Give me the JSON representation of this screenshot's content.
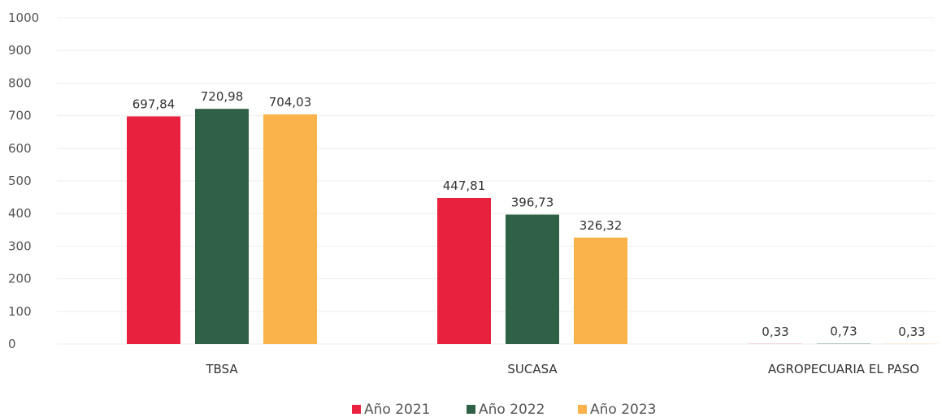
{
  "chart_data": {
    "type": "bar",
    "categories": [
      "TBSA",
      "SUCASA",
      "AGROPECUARIA EL PASO"
    ],
    "series": [
      {
        "name": "Año 2021",
        "color": "#e8213f",
        "values": [
          697.84,
          447.81,
          0.33
        ],
        "labels": [
          "697,84",
          "447,81",
          "0,33"
        ]
      },
      {
        "name": "Año 2022",
        "color": "#2f6146",
        "values": [
          720.98,
          396.73,
          0.73
        ],
        "labels": [
          "720,98",
          "396,73",
          "0,73"
        ]
      },
      {
        "name": "Año 2023",
        "color": "#f9b34a",
        "values": [
          704.03,
          326.32,
          0.33
        ],
        "labels": [
          "704,03",
          "326,32",
          "0,33"
        ]
      }
    ],
    "ylim": [
      0,
      1000
    ],
    "yticks": [
      "0",
      "100",
      "200",
      "300",
      "400",
      "500",
      "600",
      "700",
      "800",
      "900",
      "1000"
    ],
    "grid": true,
    "legend_position": "bottom"
  }
}
